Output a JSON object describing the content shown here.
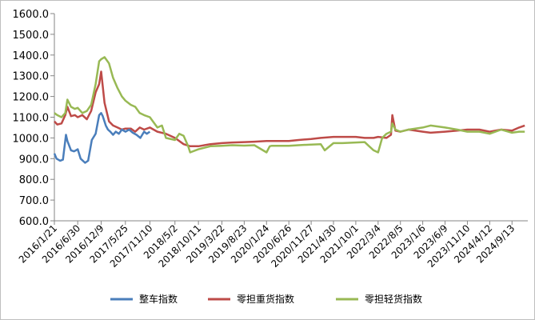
{
  "chart_data": {
    "type": "line",
    "y_tick_labels": [
      "600.0",
      "700.0",
      "800.0",
      "900.0",
      "1000.0",
      "1100.0",
      "1200.0",
      "1300.0",
      "1400.0",
      "1500.0",
      "1600.0"
    ],
    "ylim": [
      600,
      1600
    ],
    "x_tick_labels": [
      "2016/1/21",
      "2016/6/30",
      "2016/12/9",
      "2017/5/25",
      "2017/11/10",
      "2018/5/2",
      "2018/10/11",
      "2019/3/22",
      "2019/8/23",
      "2020/1/24",
      "2020/6/26",
      "2020/11/27",
      "2021/4/30",
      "2021/10/1",
      "2022/3/4",
      "2022/8/5",
      "2023/1/6",
      "2023/6/9",
      "2023/11/10",
      "2024/4/12",
      "2024/9/13"
    ],
    "grid": false,
    "legend_position": "bottom",
    "series": [
      {
        "name": "整车指数",
        "color": "#4a7ebb",
        "x": [
          "2016/1/21",
          "2016/2/5",
          "2016/3/1",
          "2016/3/20",
          "2016/4/10",
          "2016/4/20",
          "2016/5/15",
          "2016/6/5",
          "2016/6/30",
          "2016/7/20",
          "2016/8/20",
          "2016/9/10",
          "2016/10/5",
          "2016/11/1",
          "2016/11/25",
          "2016/12/9",
          "2016/12/20",
          "2017/1/10",
          "2017/1/25",
          "2017/2/10",
          "2017/3/1",
          "2017/3/20",
          "2017/4/10",
          "2017/5/1",
          "2017/5/25",
          "2017/6/20",
          "2017/7/15",
          "2017/8/10",
          "2017/9/5",
          "2017/10/1",
          "2017/10/20",
          "2017/11/10"
        ],
        "values": [
          925,
          900,
          890,
          895,
          1015,
          985,
          940,
          935,
          945,
          900,
          880,
          890,
          990,
          1020,
          1110,
          1120,
          1105,
          1060,
          1040,
          1030,
          1015,
          1030,
          1020,
          1040,
          1030,
          1040,
          1025,
          1015,
          1000,
          1030,
          1020,
          1030
        ]
      },
      {
        "name": "零担重货指数",
        "color": "#be4b48",
        "x": [
          "2016/1/21",
          "2016/2/10",
          "2016/3/10",
          "2016/4/5",
          "2016/4/20",
          "2016/5/15",
          "2016/6/10",
          "2016/6/30",
          "2016/8/1",
          "2016/9/1",
          "2016/10/1",
          "2016/11/1",
          "2016/11/25",
          "2016/12/9",
          "2017/1/1",
          "2017/2/1",
          "2017/3/1",
          "2017/4/1",
          "2017/5/1",
          "2017/5/25",
          "2017/7/1",
          "2017/8/1",
          "2017/9/1",
          "2017/10/1",
          "2017/11/10",
          "2018/1/1",
          "2018/3/1",
          "2018/5/2",
          "2018/7/1",
          "2018/8/15",
          "2018/10/11",
          "2019/1/1",
          "2019/3/22",
          "2019/6/1",
          "2019/8/23",
          "2019/11/1",
          "2020/1/24",
          "2020/4/1",
          "2020/6/26",
          "2020/9/1",
          "2020/11/27",
          "2021/2/1",
          "2021/4/30",
          "2021/7/1",
          "2021/10/1",
          "2021/12/1",
          "2022/2/1",
          "2022/3/4",
          "2022/5/1",
          "2022/6/1",
          "2022/6/10",
          "2022/7/1",
          "2022/8/5",
          "2022/10/1",
          "2023/1/6",
          "2023/3/1",
          "2023/6/9",
          "2023/9/1",
          "2023/11/10",
          "2024/2/1",
          "2024/4/12",
          "2024/7/1",
          "2024/9/13",
          "2024/11/1",
          "2024/12/10"
        ],
        "values": [
          1080,
          1065,
          1070,
          1110,
          1150,
          1105,
          1110,
          1100,
          1110,
          1090,
          1130,
          1220,
          1260,
          1320,
          1170,
          1080,
          1060,
          1050,
          1040,
          1045,
          1045,
          1030,
          1050,
          1040,
          1050,
          1030,
          1020,
          1000,
          970,
          960,
          960,
          970,
          975,
          978,
          980,
          982,
          985,
          985,
          985,
          990,
          995,
          1000,
          1005,
          1005,
          1005,
          1000,
          1000,
          1005,
          1000,
          1015,
          1110,
          1035,
          1030,
          1040,
          1030,
          1025,
          1030,
          1035,
          1040,
          1040,
          1030,
          1040,
          1035,
          1050,
          1060
        ]
      },
      {
        "name": "零担轻货指数",
        "color": "#98b954",
        "x": [
          "2016/1/21",
          "2016/2/10",
          "2016/3/10",
          "2016/4/5",
          "2016/4/20",
          "2016/5/15",
          "2016/6/10",
          "2016/6/30",
          "2016/8/1",
          "2016/9/1",
          "2016/10/1",
          "2016/11/1",
          "2016/11/25",
          "2016/12/9",
          "2017/1/1",
          "2017/2/1",
          "2017/3/1",
          "2017/4/1",
          "2017/5/1",
          "2017/5/25",
          "2017/7/1",
          "2017/8/1",
          "2017/9/1",
          "2017/10/1",
          "2017/11/10",
          "2018/1/1",
          "2018/2/1",
          "2018/3/1",
          "2018/5/2",
          "2018/6/1",
          "2018/7/1",
          "2018/8/1",
          "2018/8/15",
          "2018/10/11",
          "2019/1/1",
          "2019/3/22",
          "2019/6/1",
          "2019/8/23",
          "2019/11/1",
          "2020/1/24",
          "2020/2/15",
          "2020/3/1",
          "2020/6/26",
          "2020/9/1",
          "2020/11/27",
          "2021/2/1",
          "2021/3/1",
          "2021/4/30",
          "2021/7/1",
          "2021/10/1",
          "2021/12/1",
          "2022/1/1",
          "2022/2/1",
          "2022/3/4",
          "2022/4/1",
          "2022/5/1",
          "2022/6/1",
          "2022/6/10",
          "2022/7/1",
          "2022/8/5",
          "2022/10/1",
          "2023/1/6",
          "2023/3/1",
          "2023/6/9",
          "2023/9/1",
          "2023/11/10",
          "2024/2/1",
          "2024/4/12",
          "2024/7/1",
          "2024/9/13",
          "2024/11/1",
          "2024/12/10"
        ],
        "values": [
          1120,
          1110,
          1100,
          1120,
          1185,
          1150,
          1140,
          1145,
          1120,
          1130,
          1160,
          1260,
          1370,
          1380,
          1390,
          1360,
          1290,
          1240,
          1200,
          1180,
          1160,
          1150,
          1120,
          1110,
          1100,
          1050,
          1060,
          1000,
          990,
          1020,
          1010,
          960,
          930,
          945,
          960,
          962,
          965,
          963,
          965,
          930,
          960,
          962,
          962,
          965,
          968,
          970,
          940,
          975,
          975,
          978,
          980,
          960,
          940,
          930,
          1000,
          1020,
          1030,
          1070,
          1040,
          1030,
          1040,
          1050,
          1060,
          1050,
          1040,
          1030,
          1030,
          1020,
          1040,
          1025,
          1030,
          1030
        ]
      }
    ]
  }
}
